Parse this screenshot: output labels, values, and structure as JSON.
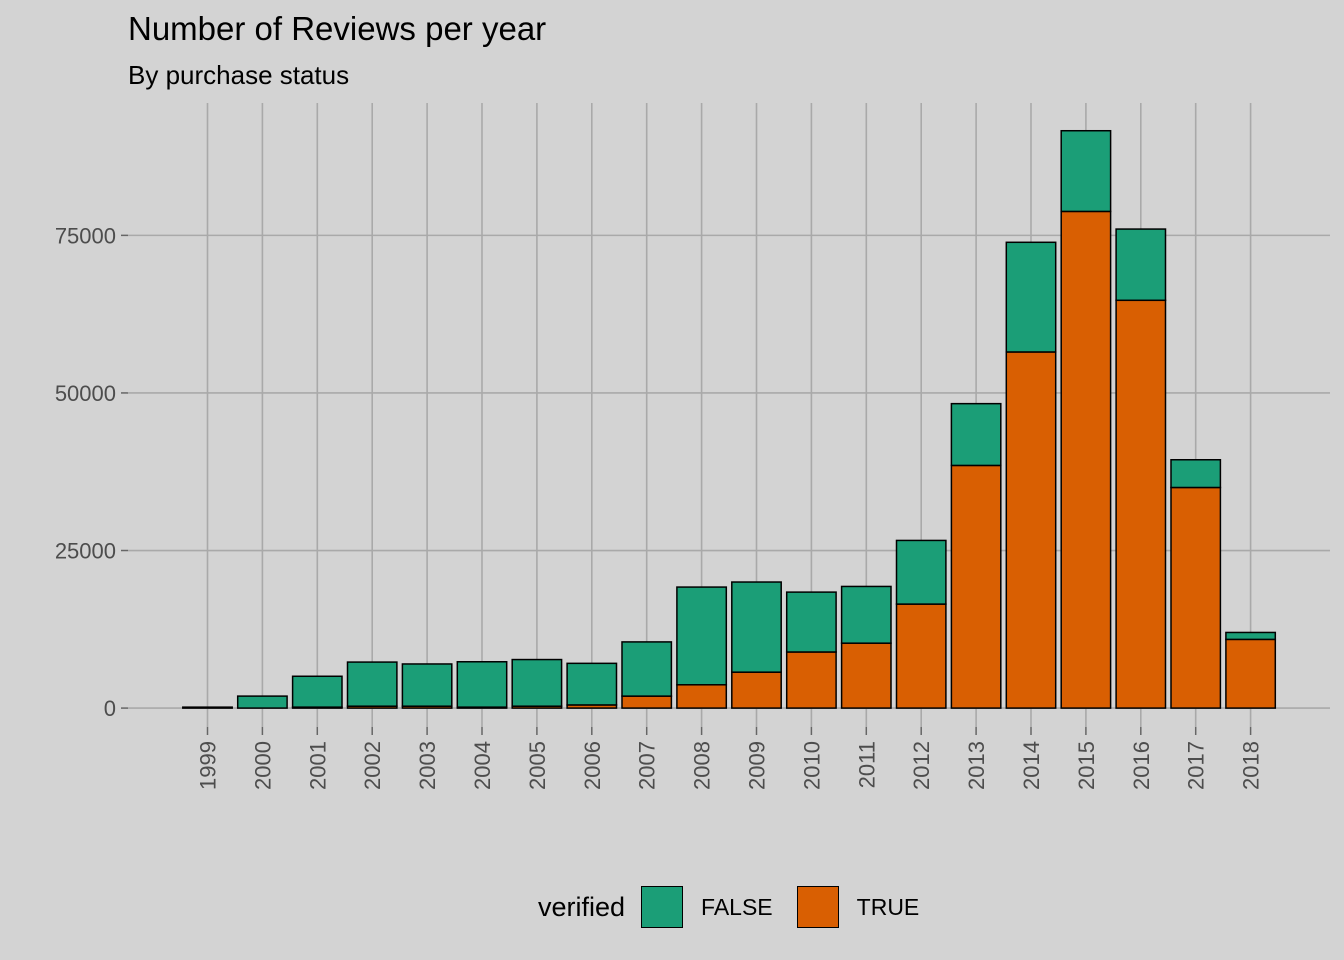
{
  "chart_data": {
    "type": "bar",
    "stacked": true,
    "title": "Number of Reviews per year",
    "subtitle": "By purchase status",
    "xlabel": "",
    "ylabel": "",
    "categories": [
      "1999",
      "2000",
      "2001",
      "2002",
      "2003",
      "2004",
      "2005",
      "2006",
      "2007",
      "2008",
      "2009",
      "2010",
      "2011",
      "2012",
      "2013",
      "2014",
      "2015",
      "2016",
      "2017",
      "2018"
    ],
    "series": [
      {
        "name": "TRUE",
        "color": "#d95f02",
        "values": [
          0,
          0,
          150,
          300,
          300,
          150,
          300,
          500,
          1900,
          3700,
          5700,
          8900,
          10300,
          16500,
          38500,
          56500,
          78800,
          64700,
          35000,
          10900
        ]
      },
      {
        "name": "FALSE",
        "color": "#1b9e77",
        "values": [
          150,
          1900,
          4900,
          7000,
          6700,
          7200,
          7400,
          6600,
          8600,
          15500,
          14300,
          9500,
          9000,
          10100,
          9800,
          17400,
          12800,
          11300,
          4400,
          1100
        ]
      }
    ],
    "ylim": [
      -3000,
      96000
    ],
    "yticks": [
      0,
      25000,
      50000,
      75000
    ],
    "ytick_labels": [
      "0",
      "25000",
      "50000",
      "75000"
    ],
    "grid": true,
    "legend": {
      "title": "verified",
      "position": "bottom",
      "order": [
        "FALSE",
        "TRUE"
      ]
    }
  }
}
